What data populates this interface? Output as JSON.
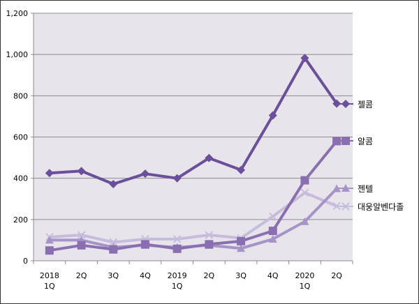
{
  "chart_data": {
    "type": "line",
    "title": "",
    "xlabel": "",
    "ylabel": "",
    "categories": [
      [
        "2018",
        "1Q"
      ],
      [
        "2Q"
      ],
      [
        "3Q"
      ],
      [
        "4Q"
      ],
      [
        "2019",
        "1Q"
      ],
      [
        "2Q"
      ],
      [
        "3Q"
      ],
      [
        "4Q"
      ],
      [
        "2020",
        "1Q"
      ],
      [
        "2Q"
      ]
    ],
    "ylim": [
      0,
      1200
    ],
    "yticks": [
      0,
      200,
      400,
      600,
      800,
      1000,
      1200
    ],
    "ytick_labels": [
      "0",
      "200",
      "400",
      "600",
      "800",
      "1,000",
      "1,200"
    ],
    "grid": "horizontal",
    "legend_position": "right",
    "plot_background": "#e8e4ec",
    "series": [
      {
        "name": "젤콤",
        "color": "#6b4f9a",
        "marker": "diamond",
        "values": [
          425,
          435,
          372,
          422,
          400,
          498,
          440,
          705,
          983,
          762
        ]
      },
      {
        "name": "알콤",
        "color": "#8a6fb0",
        "marker": "square",
        "values": [
          50,
          75,
          55,
          80,
          58,
          80,
          95,
          145,
          390,
          580
        ]
      },
      {
        "name": "젠텔",
        "color": "#a694c8",
        "marker": "triangle",
        "values": [
          100,
          100,
          65,
          75,
          65,
          75,
          60,
          105,
          190,
          350
        ]
      },
      {
        "name": "대웅알벤다졸",
        "color": "#c8bcdd",
        "marker": "x",
        "values": [
          115,
          125,
          90,
          105,
          105,
          125,
          110,
          215,
          330,
          265
        ]
      }
    ]
  }
}
